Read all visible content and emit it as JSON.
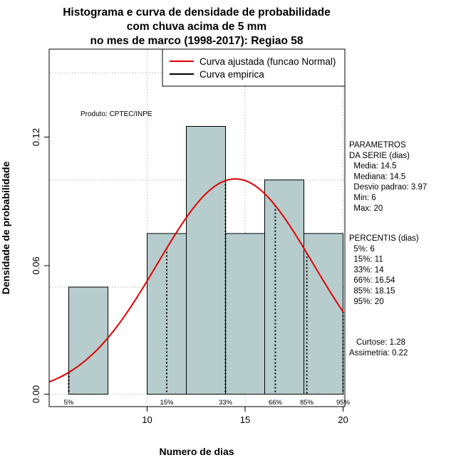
{
  "chart_data": {
    "type": "bar",
    "title_lines": [
      "Histograma e curva de densidade de probabilidade",
      "com chuva acima de 5 mm",
      "no mes de marco (1998-2017): Regiao 58"
    ],
    "xlabel": "Numero de dias",
    "ylabel": "Densidade de probabilidade",
    "xlim": [
      5,
      20.3
    ],
    "ylim": [
      0,
      0.16
    ],
    "xticks": [
      10,
      15,
      20
    ],
    "xtick_labels": [
      "10",
      "15",
      "20"
    ],
    "yticks": [
      0.0,
      0.06,
      0.12
    ],
    "ytick_labels": [
      "0.00",
      "0.06",
      "0.12"
    ],
    "bins": [
      {
        "start": 6,
        "end": 8,
        "density": 0.05
      },
      {
        "start": 8,
        "end": 10,
        "density": 0.0
      },
      {
        "start": 10,
        "end": 12,
        "density": 0.075
      },
      {
        "start": 12,
        "end": 14,
        "density": 0.125
      },
      {
        "start": 14,
        "end": 16,
        "density": 0.075
      },
      {
        "start": 16,
        "end": 18,
        "density": 0.1
      },
      {
        "start": 18,
        "end": 20,
        "density": 0.075
      }
    ],
    "bar_color": "#b7cdcd",
    "curve_color": "#e00000",
    "normal_fit": {
      "mean": 14.5,
      "sd": 3.97
    },
    "legend": {
      "position": "top-right",
      "entries": [
        {
          "label": "Curva ajustada (funcao Normal)",
          "color": "#e00000"
        },
        {
          "label": "Curva empirica",
          "color": "#000000"
        }
      ]
    },
    "annotation": "Produto: CPTEC/INPE",
    "percentile_markers": [
      {
        "label": "5%",
        "value": 6
      },
      {
        "label": "15%",
        "value": 11
      },
      {
        "label": "33%",
        "value": 14
      },
      {
        "label": "66%",
        "value": 16.54
      },
      {
        "label": "85%",
        "value": 18.15
      },
      {
        "label": "95%",
        "value": 20
      }
    ]
  },
  "side_panel": {
    "params_lines": [
      "PARAMETROS",
      "DA SERIE (dias)",
      "  Media: 14.5",
      "  Mediana: 14.5",
      "  Desvio padrao: 3.97",
      "  Min: 6",
      "  Max: 20"
    ],
    "percentis_lines": [
      "PERCENTIS (dias)",
      "  5%: 6",
      "  15%: 11",
      "  33%: 14",
      "  66%: 16.54",
      "  85%: 18.15",
      "  95%: 20"
    ],
    "curtose": "Curtose: 1.28",
    "assimetria": "Assimetria: 0.22"
  }
}
